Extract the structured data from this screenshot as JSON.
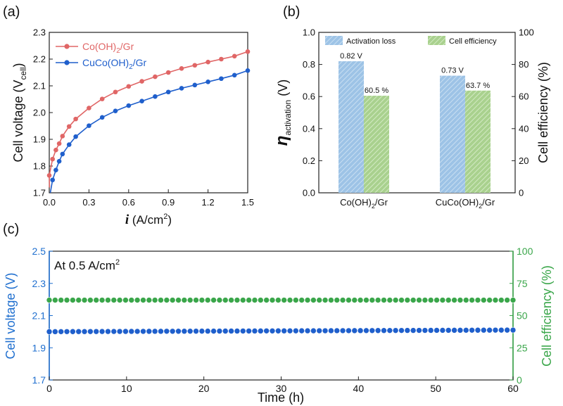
{
  "panels": {
    "a": "(a)",
    "b": "(b)",
    "c": "(c)"
  },
  "chart_data": [
    {
      "id": "a",
      "type": "line",
      "xlabel_var": "i",
      "xlabel_unit": " (A/cm",
      "xlabel_sup": "2",
      "xlabel_close": ")",
      "ylabel_main": "Cell voltage (V",
      "ylabel_sub": "cell",
      "ylabel_close": ")",
      "xlim": [
        0,
        1.5
      ],
      "ylim": [
        1.7,
        2.3
      ],
      "xticks": [
        0.0,
        0.3,
        0.6,
        0.9,
        1.2,
        1.5
      ],
      "xtick_labels": [
        "0.0",
        "0.3",
        "0.6",
        "0.9",
        "1.2",
        "1.5"
      ],
      "yticks": [
        1.7,
        1.8,
        1.9,
        2.0,
        2.1,
        2.2,
        2.3
      ],
      "ytick_labels": [
        "1.7",
        "1.8",
        "1.9",
        "2.0",
        "2.1",
        "2.2",
        "2.3"
      ],
      "legend_position": "top-left",
      "series": [
        {
          "name_parts": [
            "Co(OH)",
            "2",
            "/Gr"
          ],
          "color": "#e06666",
          "x": [
            0.0,
            0.025,
            0.05,
            0.075,
            0.1,
            0.15,
            0.2,
            0.3,
            0.4,
            0.5,
            0.6,
            0.7,
            0.8,
            0.9,
            1.0,
            1.1,
            1.2,
            1.3,
            1.4,
            1.5
          ],
          "y": [
            1.765,
            1.826,
            1.86,
            1.884,
            1.912,
            1.948,
            1.976,
            2.017,
            2.051,
            2.077,
            2.098,
            2.117,
            2.134,
            2.15,
            2.165,
            2.177,
            2.189,
            2.2,
            2.211,
            2.228
          ]
        },
        {
          "name_parts": [
            "CuCo(OH)",
            "2",
            "/Gr"
          ],
          "color": "#1f5fcc",
          "x": [
            0.025,
            0.05,
            0.075,
            0.1,
            0.15,
            0.2,
            0.3,
            0.4,
            0.5,
            0.6,
            0.7,
            0.8,
            0.9,
            1.0,
            1.1,
            1.2,
            1.3,
            1.4,
            1.5
          ],
          "y": [
            1.748,
            1.785,
            1.818,
            1.845,
            1.88,
            1.91,
            1.951,
            1.982,
            2.006,
            2.026,
            2.043,
            2.06,
            2.077,
            2.091,
            2.103,
            2.115,
            2.127,
            2.14,
            2.157
          ]
        }
      ]
    },
    {
      "id": "b",
      "type": "bar",
      "categories": [
        {
          "parts": [
            "Co(OH)",
            "2",
            "/Gr"
          ]
        },
        {
          "parts": [
            "CuCo(OH)",
            "2",
            "/Gr"
          ]
        }
      ],
      "ylabel_left_main": "η",
      "ylabel_left_sub": "activation",
      "ylabel_left_unit": " (V)",
      "ylabel_right": "Cell efficiency (%)",
      "ylim_left": [
        0.0,
        1.0
      ],
      "ylim_right": [
        0,
        100
      ],
      "yticks_left": [
        0.0,
        0.2,
        0.4,
        0.6,
        0.8,
        1.0
      ],
      "ytick_labels_left": [
        "0.0",
        "0.2",
        "0.4",
        "0.6",
        "0.8",
        "1.0"
      ],
      "yticks_right": [
        0,
        20,
        40,
        60,
        80,
        100
      ],
      "ytick_labels_right": [
        "0",
        "20",
        "40",
        "60",
        "80",
        "100"
      ],
      "legend_position": "top",
      "series": [
        {
          "name": "Activation loss",
          "axis": "left",
          "color": "#9dc3e6",
          "values": [
            0.82,
            0.73
          ],
          "labels": [
            "0.82 V",
            "0.73 V"
          ]
        },
        {
          "name": "Cell efficiency",
          "axis": "right",
          "color": "#a9d18e",
          "values": [
            60.5,
            63.7
          ],
          "labels": [
            "60.5 %",
            "63.7 %"
          ]
        }
      ]
    },
    {
      "id": "c",
      "type": "scatter",
      "annotation_main": "At 0.5 A/cm",
      "annotation_sup": "2",
      "xlabel": "Time (h)",
      "ylabel_left": "Cell voltage (V)",
      "ylabel_right": "Cell efficiency (%)",
      "xlim": [
        0,
        60
      ],
      "ylim_left": [
        1.7,
        2.5
      ],
      "ylim_right": [
        0,
        100
      ],
      "xticks": [
        0,
        10,
        20,
        30,
        40,
        50,
        60
      ],
      "xtick_labels": [
        "0",
        "10",
        "20",
        "30",
        "40",
        "50",
        "60"
      ],
      "yticks_left": [
        1.7,
        1.9,
        2.1,
        2.3,
        2.5
      ],
      "ytick_labels_left": [
        "1.7",
        "1.9",
        "2.1",
        "2.3",
        "2.5"
      ],
      "yticks_right": [
        0,
        25,
        50,
        75,
        100
      ],
      "ytick_labels_right": [
        "0",
        "25",
        "50",
        "75",
        "100"
      ],
      "left_color": "#1f6fcf",
      "right_color": "#3aa64a",
      "series": [
        {
          "axis": "left",
          "color": "#1f5fcc",
          "x_start": 0,
          "x_end": 60,
          "count": 80,
          "y_start": 2.0,
          "y_end": 2.01
        },
        {
          "axis": "right",
          "color": "#3aa64a",
          "x_start": 0,
          "x_end": 60,
          "count": 80,
          "y_start": 62,
          "y_end": 62
        }
      ]
    }
  ]
}
